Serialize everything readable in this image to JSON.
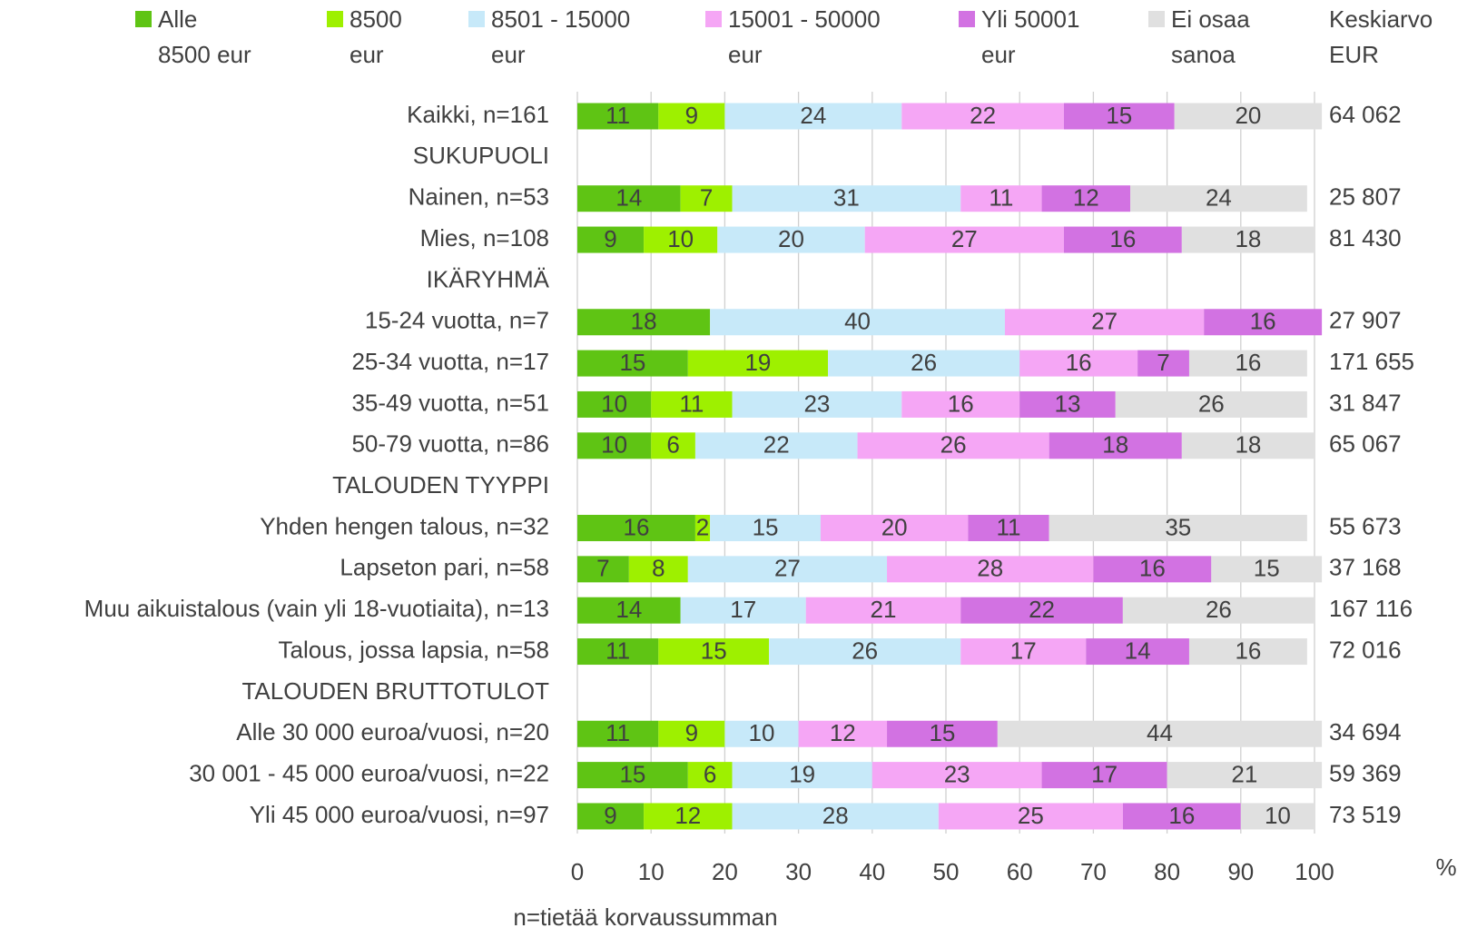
{
  "chart_data": {
    "type": "stacked_barh",
    "categories": [
      "Kaikki, n=161",
      "SUKUPUOLI",
      "Nainen, n=53",
      "Mies, n=108",
      "IKÄRYHMÄ",
      "15-24 vuotta, n=7",
      "25-34 vuotta, n=17",
      "35-49 vuotta, n=51",
      "50-79 vuotta, n=86",
      "TALOUDEN TYYPPI",
      "Yhden hengen talous, n=32",
      "Lapseton pari, n=58",
      "Muu aikuistalous (vain yli 18-vuotiaita), n=13",
      "Talous, jossa lapsia, n=58",
      "TALOUDEN BRUTTOTULOT",
      "Alle 30 000 euroa/vuosi, n=20",
      "30 001 - 45 000 euroa/vuosi, n=22",
      "Yli 45 000 euroa/vuosi, n=97"
    ],
    "series": [
      {
        "name": "Alle\n8500 eur",
        "color": "#5fc414",
        "values": [
          11,
          null,
          14,
          9,
          null,
          18,
          15,
          10,
          10,
          null,
          16,
          7,
          14,
          11,
          null,
          11,
          15,
          9
        ]
      },
      {
        "name": "8500\neur",
        "color": "#9ef000",
        "values": [
          9,
          null,
          7,
          10,
          null,
          null,
          19,
          11,
          6,
          null,
          2,
          8,
          null,
          15,
          null,
          9,
          6,
          12
        ]
      },
      {
        "name": "8501 - 15000\neur",
        "color": "#c7e9f9",
        "values": [
          24,
          null,
          31,
          20,
          null,
          40,
          26,
          23,
          22,
          null,
          15,
          27,
          17,
          26,
          null,
          10,
          19,
          28
        ]
      },
      {
        "name": "15001 - 50000\neur",
        "color": "#f5a6f5",
        "values": [
          22,
          null,
          11,
          27,
          null,
          27,
          16,
          16,
          26,
          null,
          20,
          28,
          21,
          17,
          null,
          12,
          23,
          25
        ]
      },
      {
        "name": "Yli 50001\neur",
        "color": "#d272e2",
        "values": [
          15,
          null,
          12,
          16,
          null,
          16,
          7,
          13,
          18,
          null,
          11,
          16,
          22,
          14,
          null,
          15,
          17,
          16
        ]
      },
      {
        "name": "Ei osaa\nsanoa",
        "color": "#e0e0e0",
        "values": [
          20,
          null,
          24,
          18,
          null,
          null,
          16,
          26,
          18,
          null,
          35,
          15,
          26,
          16,
          null,
          44,
          21,
          10
        ]
      }
    ],
    "mean_column": {
      "title": "Keskiarvo\nEUR",
      "values": [
        "64 062",
        null,
        "25 807",
        "81 430",
        null,
        "27 907",
        "171 655",
        "31 847",
        "65 067",
        null,
        "55 673",
        "37 168",
        "167 116",
        "72 016",
        null,
        "34 694",
        "59 369",
        "73 519"
      ]
    },
    "xlim": [
      0,
      100
    ],
    "xticks": [
      0,
      10,
      20,
      30,
      40,
      50,
      60,
      70,
      80,
      90,
      100
    ],
    "xlabel": "%",
    "grid": true,
    "note": "n=tietää korvaussumman"
  }
}
